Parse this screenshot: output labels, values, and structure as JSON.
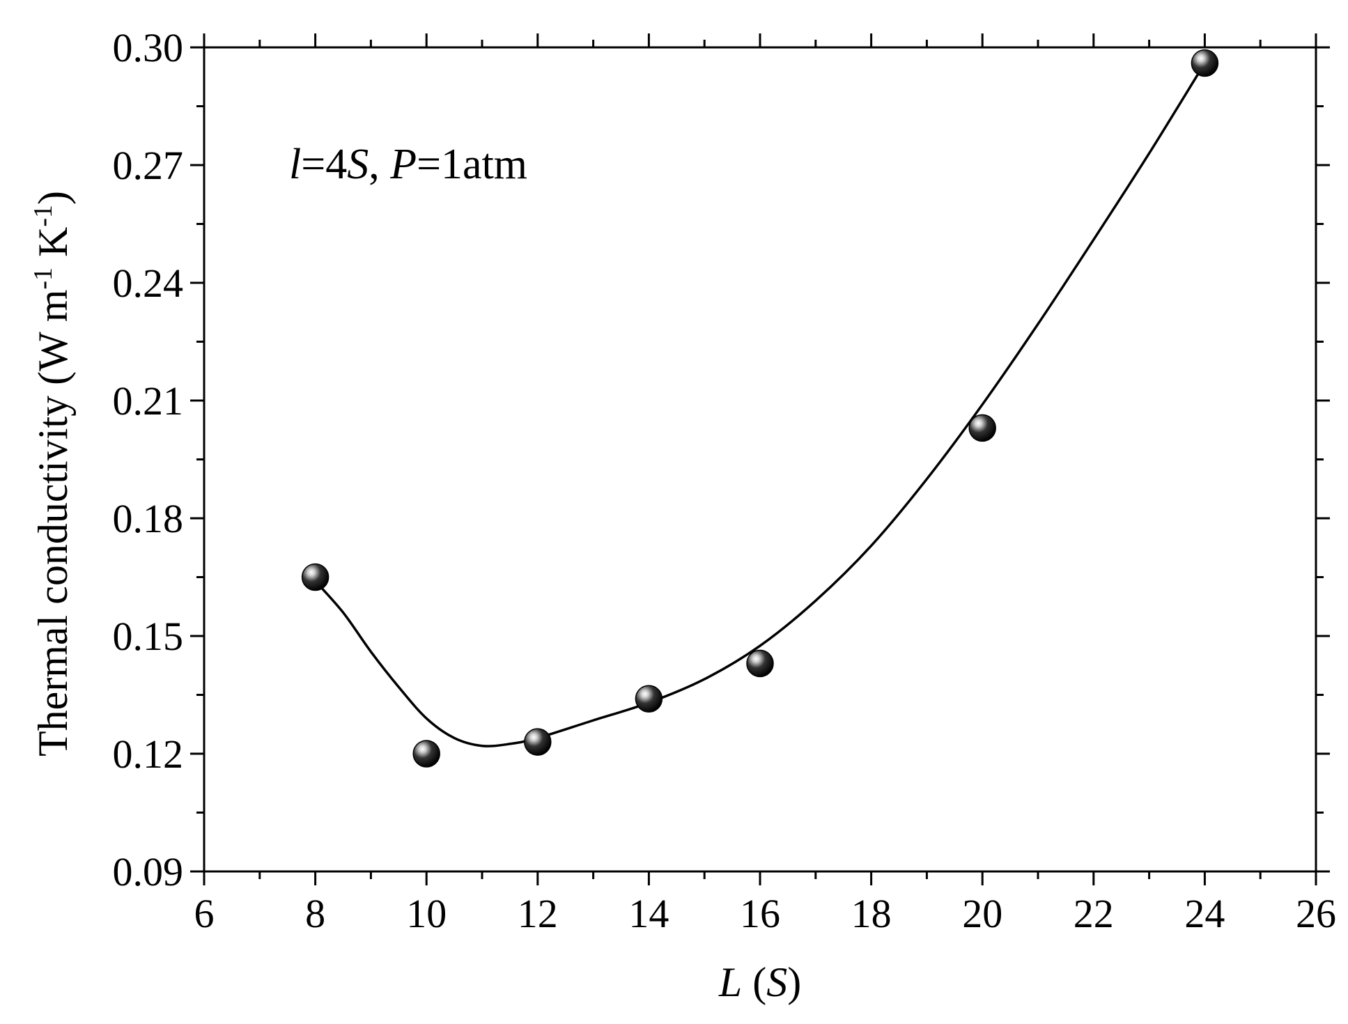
{
  "chart_data": {
    "type": "scatter",
    "annotation": {
      "v1": "l",
      "t1": "=4",
      "v2": "S",
      "t2": ", ",
      "v3": "P",
      "t3": "=1atm"
    },
    "xlabel": {
      "var": "L",
      "unit_open": " (",
      "unit_var": "S",
      "unit_close": ")"
    },
    "ylabel": {
      "main": "Thermal conductivity (W m",
      "sup1": "-1",
      "mid": " K",
      "sup2": "-1",
      "close": ")"
    },
    "xlim": [
      6,
      26
    ],
    "ylim": [
      0.09,
      0.3
    ],
    "x_ticks": [
      "6",
      "8",
      "10",
      "12",
      "14",
      "16",
      "18",
      "20",
      "22",
      "24",
      "26"
    ],
    "y_ticks": [
      "0.09",
      "0.12",
      "0.15",
      "0.18",
      "0.21",
      "0.24",
      "0.27",
      "0.30"
    ],
    "points": [
      {
        "x": 8,
        "y": 0.165
      },
      {
        "x": 10,
        "y": 0.12
      },
      {
        "x": 12,
        "y": 0.123
      },
      {
        "x": 14,
        "y": 0.134
      },
      {
        "x": 16,
        "y": 0.143
      },
      {
        "x": 20,
        "y": 0.203
      },
      {
        "x": 24,
        "y": 0.296
      }
    ],
    "fit_curve": [
      {
        "x": 8,
        "y": 0.164
      },
      {
        "x": 8.5,
        "y": 0.156
      },
      {
        "x": 9,
        "y": 0.146
      },
      {
        "x": 9.5,
        "y": 0.137
      },
      {
        "x": 10,
        "y": 0.129
      },
      {
        "x": 10.5,
        "y": 0.124
      },
      {
        "x": 11,
        "y": 0.122
      },
      {
        "x": 11.5,
        "y": 0.1225
      },
      {
        "x": 12,
        "y": 0.124
      },
      {
        "x": 13,
        "y": 0.1285
      },
      {
        "x": 14,
        "y": 0.133
      },
      {
        "x": 15,
        "y": 0.139
      },
      {
        "x": 16,
        "y": 0.1475
      },
      {
        "x": 17,
        "y": 0.159
      },
      {
        "x": 18,
        "y": 0.173
      },
      {
        "x": 19,
        "y": 0.19
      },
      {
        "x": 20,
        "y": 0.209
      },
      {
        "x": 21,
        "y": 0.2295
      },
      {
        "x": 22,
        "y": 0.251
      },
      {
        "x": 23,
        "y": 0.273
      },
      {
        "x": 24,
        "y": 0.296
      }
    ],
    "grid": false,
    "marker_color": "#000000",
    "line_color": "#000000"
  }
}
